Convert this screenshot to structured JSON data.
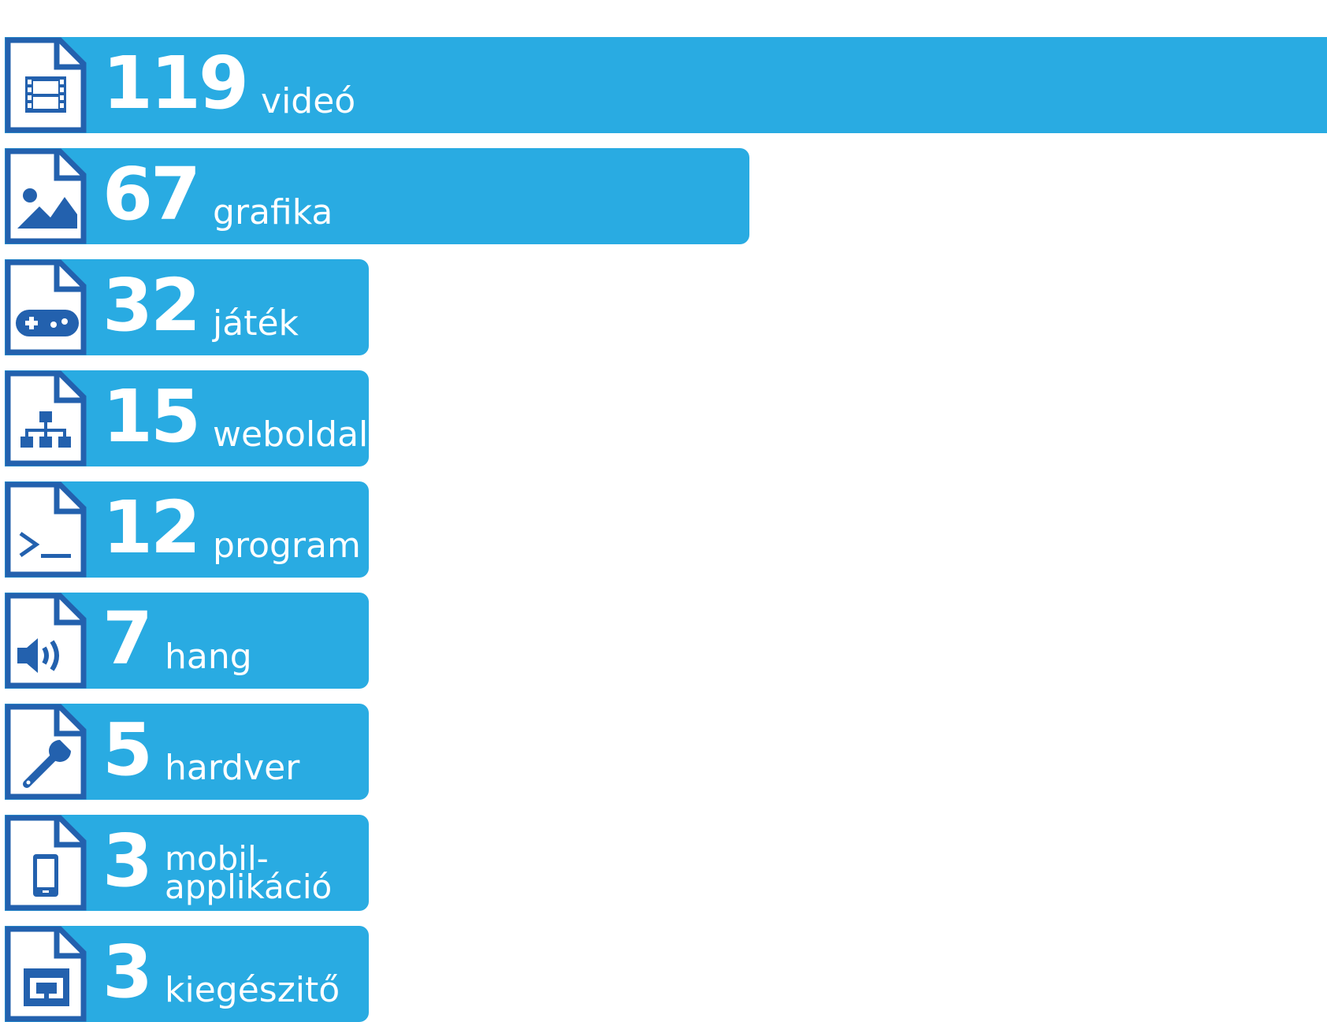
{
  "chart_data": {
    "type": "bar",
    "orientation": "horizontal",
    "title": "",
    "xlabel": "",
    "ylabel": "",
    "xlim": [
      0,
      119
    ],
    "grid": false,
    "legend": "none",
    "categories": [
      "videó",
      "grafika",
      "játék",
      "weboldal",
      "program",
      "hang",
      "hardver",
      "mobil-applikáció",
      "kiegészitő"
    ],
    "values": [
      119,
      67,
      32,
      15,
      12,
      7,
      5,
      3,
      3
    ],
    "items": [
      {
        "value": "119",
        "label_lines": [
          "videó"
        ],
        "icon": "film-icon"
      },
      {
        "value": "67",
        "label_lines": [
          "grafika"
        ],
        "icon": "image-icon"
      },
      {
        "value": "32",
        "label_lines": [
          "játék"
        ],
        "icon": "gamepad-icon"
      },
      {
        "value": "15",
        "label_lines": [
          "weboldal"
        ],
        "icon": "sitemap-icon"
      },
      {
        "value": "12",
        "label_lines": [
          "program"
        ],
        "icon": "terminal-icon"
      },
      {
        "value": "7",
        "label_lines": [
          "hang"
        ],
        "icon": "speaker-icon"
      },
      {
        "value": "5",
        "label_lines": [
          "hardver"
        ],
        "icon": "wrench-icon"
      },
      {
        "value": "3",
        "label_lines": [
          "mobil-",
          "applikáció"
        ],
        "icon": "mobile-phone-icon"
      },
      {
        "value": "3",
        "label_lines": [
          "kiegészitő"
        ],
        "icon": "plugin-icon"
      }
    ]
  },
  "colors": {
    "bar": "#29ABE2",
    "icon": "#2361AE",
    "text": "#FFFFFF",
    "background": "#FFFFFF"
  }
}
